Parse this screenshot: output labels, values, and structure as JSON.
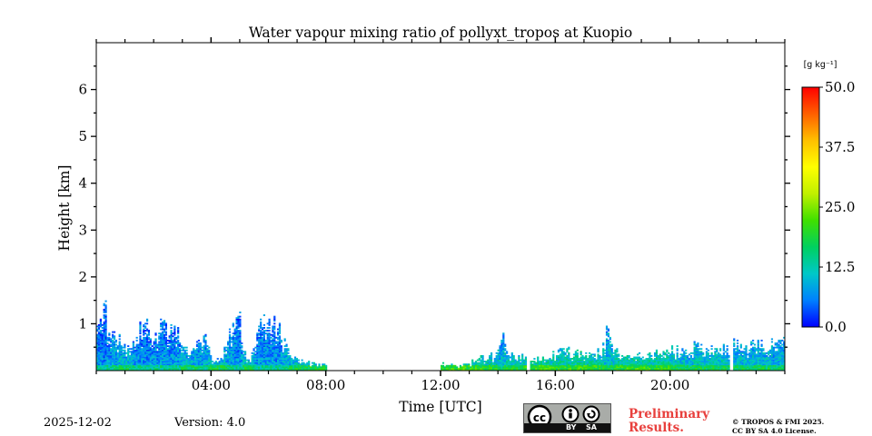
{
  "chart_data": {
    "type": "heatmap",
    "title": "Water vapour mixing ratio of pollyxt_tropos at Kuopio",
    "xlabel": "Time [UTC]",
    "ylabel": "Height [km]",
    "xlim": [
      0,
      24
    ],
    "ylim": [
      0,
      7
    ],
    "x_ticks": [
      4,
      8,
      12,
      16,
      20
    ],
    "x_tick_labels": [
      "04:00",
      "08:00",
      "12:00",
      "16:00",
      "20:00"
    ],
    "y_ticks": [
      1,
      2,
      3,
      4,
      5,
      6
    ],
    "y_tick_labels": [
      "1",
      "2",
      "3",
      "4",
      "5",
      "6"
    ],
    "colorbar": {
      "unit": "[g kg⁻¹]",
      "min": 0,
      "max": 50,
      "ticks": [
        0,
        12.5,
        25,
        37.5,
        50
      ],
      "tick_labels": [
        "0.0",
        "12.5",
        "25.0",
        "37.5",
        "50.0"
      ],
      "colors": [
        "#0000ff",
        "#0080ff",
        "#00c8c8",
        "#00d060",
        "#40e000",
        "#c0f000",
        "#ffff00",
        "#ffc000",
        "#ff6000",
        "#ff0000"
      ]
    },
    "data_segments": [
      {
        "start": 0.0,
        "end": 8.05,
        "value": 9
      },
      {
        "start": 12.0,
        "end": 15.0,
        "value": 15
      },
      {
        "start": 15.15,
        "end": 22.05,
        "value": 16
      },
      {
        "start": 22.2,
        "end": 24.0,
        "value": 12
      }
    ],
    "profiles": [
      {
        "time": 0.0,
        "top": 0.9,
        "value": 8
      },
      {
        "time": 0.2,
        "top": 1.1,
        "value": 7
      },
      {
        "time": 0.3,
        "top": 1.4,
        "value": 6
      },
      {
        "time": 0.4,
        "top": 0.95,
        "value": 8
      },
      {
        "time": 0.6,
        "top": 0.8,
        "value": 9
      },
      {
        "time": 0.8,
        "top": 0.7,
        "value": 10
      },
      {
        "time": 1.0,
        "top": 0.55,
        "value": 10
      },
      {
        "time": 1.2,
        "top": 0.45,
        "value": 11
      },
      {
        "time": 1.4,
        "top": 0.9,
        "value": 8
      },
      {
        "time": 1.6,
        "top": 0.95,
        "value": 8
      },
      {
        "time": 1.8,
        "top": 1.1,
        "value": 7
      },
      {
        "time": 2.0,
        "top": 0.75,
        "value": 9
      },
      {
        "time": 2.2,
        "top": 0.9,
        "value": 8
      },
      {
        "time": 2.4,
        "top": 0.95,
        "value": 8
      },
      {
        "time": 2.6,
        "top": 0.85,
        "value": 8
      },
      {
        "time": 2.8,
        "top": 0.95,
        "value": 8
      },
      {
        "time": 3.0,
        "top": 0.6,
        "value": 10
      },
      {
        "time": 3.2,
        "top": 0.35,
        "value": 11
      },
      {
        "time": 3.4,
        "top": 0.6,
        "value": 10
      },
      {
        "time": 3.6,
        "top": 0.65,
        "value": 9
      },
      {
        "time": 3.8,
        "top": 0.7,
        "value": 9
      },
      {
        "time": 4.0,
        "top": 0.25,
        "value": 12
      },
      {
        "time": 4.2,
        "top": 0.2,
        "value": 12
      },
      {
        "time": 4.4,
        "top": 0.3,
        "value": 12
      },
      {
        "time": 4.6,
        "top": 0.75,
        "value": 9
      },
      {
        "time": 4.8,
        "top": 1.0,
        "value": 8
      },
      {
        "time": 5.0,
        "top": 1.2,
        "value": 7
      },
      {
        "time": 5.2,
        "top": 0.3,
        "value": 12
      },
      {
        "time": 5.4,
        "top": 0.25,
        "value": 12
      },
      {
        "time": 5.6,
        "top": 0.9,
        "value": 8
      },
      {
        "time": 5.8,
        "top": 1.05,
        "value": 8
      },
      {
        "time": 6.0,
        "top": 0.9,
        "value": 8
      },
      {
        "time": 6.2,
        "top": 0.95,
        "value": 8
      },
      {
        "time": 6.4,
        "top": 0.85,
        "value": 8
      },
      {
        "time": 6.6,
        "top": 0.5,
        "value": 10
      },
      {
        "time": 6.8,
        "top": 0.3,
        "value": 11
      },
      {
        "time": 7.0,
        "top": 0.2,
        "value": 12
      },
      {
        "time": 7.4,
        "top": 0.15,
        "value": 13
      },
      {
        "time": 7.8,
        "top": 0.15,
        "value": 13
      },
      {
        "time": 12.0,
        "top": 0.15,
        "value": 15
      },
      {
        "time": 12.6,
        "top": 0.12,
        "value": 16
      },
      {
        "time": 13.2,
        "top": 0.2,
        "value": 15
      },
      {
        "time": 13.6,
        "top": 0.3,
        "value": 14
      },
      {
        "time": 14.0,
        "top": 0.35,
        "value": 13
      },
      {
        "time": 14.1,
        "top": 0.9,
        "value": 9
      },
      {
        "time": 14.4,
        "top": 0.3,
        "value": 14
      },
      {
        "time": 14.7,
        "top": 0.35,
        "value": 13
      },
      {
        "time": 15.2,
        "top": 0.25,
        "value": 15
      },
      {
        "time": 15.6,
        "top": 0.3,
        "value": 15
      },
      {
        "time": 16.0,
        "top": 0.35,
        "value": 14
      },
      {
        "time": 16.4,
        "top": 0.4,
        "value": 14
      },
      {
        "time": 16.8,
        "top": 0.35,
        "value": 15
      },
      {
        "time": 17.2,
        "top": 0.35,
        "value": 15
      },
      {
        "time": 17.6,
        "top": 0.4,
        "value": 14
      },
      {
        "time": 17.8,
        "top": 0.8,
        "value": 10
      },
      {
        "time": 18.2,
        "top": 0.4,
        "value": 14
      },
      {
        "time": 18.6,
        "top": 0.3,
        "value": 15
      },
      {
        "time": 19.0,
        "top": 0.35,
        "value": 15
      },
      {
        "time": 19.4,
        "top": 0.35,
        "value": 14
      },
      {
        "time": 19.8,
        "top": 0.4,
        "value": 14
      },
      {
        "time": 20.2,
        "top": 0.5,
        "value": 12
      },
      {
        "time": 20.6,
        "top": 0.55,
        "value": 11
      },
      {
        "time": 21.0,
        "top": 0.5,
        "value": 12
      },
      {
        "time": 21.4,
        "top": 0.45,
        "value": 12
      },
      {
        "time": 21.8,
        "top": 0.45,
        "value": 12
      },
      {
        "time": 22.2,
        "top": 0.55,
        "value": 11
      },
      {
        "time": 22.6,
        "top": 0.55,
        "value": 11
      },
      {
        "time": 23.0,
        "top": 0.55,
        "value": 11
      },
      {
        "time": 23.4,
        "top": 0.55,
        "value": 11
      },
      {
        "time": 23.8,
        "top": 0.6,
        "value": 10
      }
    ]
  },
  "footer": {
    "date": "2025-12-02",
    "version": "Version: 4.0",
    "license_badge": {
      "by": "BY",
      "sa": "SA"
    },
    "preliminary": "Preliminary Results.",
    "copyright_line1": "© TROPOS & FMI 2025.",
    "copyright_line2": "CC BY SA 4.0 License."
  }
}
